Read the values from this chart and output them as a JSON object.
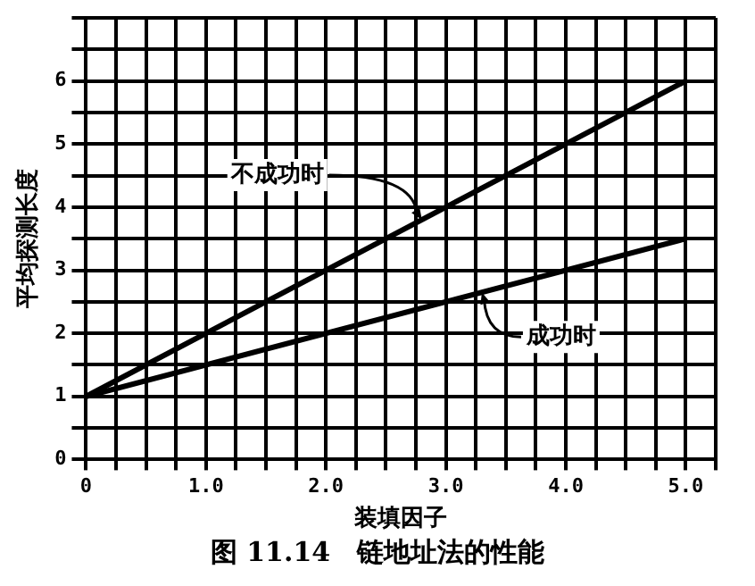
{
  "chart_data": {
    "type": "line",
    "xlabel": "装填因子",
    "ylabel": "平均探测长度",
    "x": [
      0,
      5
    ],
    "series": [
      {
        "color": "#000000",
        "values": [
          1,
          6
        ]
      },
      {
        "color": "#000000",
        "values": [
          1,
          3.5
        ]
      }
    ],
    "xlim": [
      0,
      5.25
    ],
    "ylim": [
      0,
      7
    ],
    "xticks": [
      0,
      {
        "value": 0.25,
        "label": null
      },
      {
        "value": 0.5,
        "label": null
      },
      {
        "value": 0.75,
        "label": null
      },
      {
        "value": 1,
        "label": "1.0"
      },
      {
        "value": 1.25,
        "label": null
      },
      {
        "value": 1.5,
        "label": null
      },
      {
        "value": 1.75,
        "label": null
      },
      {
        "value": 2,
        "label": "2.0"
      },
      {
        "value": 2.25,
        "label": null
      },
      {
        "value": 2.5,
        "label": null
      },
      {
        "value": 2.75,
        "label": null
      },
      {
        "value": 3,
        "label": "3.0"
      },
      {
        "value": 3.25,
        "label": null
      },
      {
        "value": 3.5,
        "label": null
      },
      {
        "value": 3.75,
        "label": null
      },
      {
        "value": 4,
        "label": "4.0"
      },
      {
        "value": 4.25,
        "label": null
      },
      {
        "value": 4.5,
        "label": null
      },
      {
        "value": 4.75,
        "label": null
      },
      {
        "value": 5,
        "label": "5.0"
      },
      {
        "value": 5.25,
        "label": null
      }
    ],
    "yticks": [
      0,
      {
        "value": 0.5,
        "label": null
      },
      1,
      {
        "value": 1.5,
        "label": null
      },
      2,
      {
        "value": 2.5,
        "label": null
      },
      3,
      {
        "value": 3.5,
        "label": null
      },
      4,
      {
        "value": 4.5,
        "label": null
      },
      5,
      {
        "value": 5.5,
        "label": null
      },
      6,
      {
        "value": 6.5,
        "label": null
      },
      {
        "value": 7,
        "label": null
      }
    ],
    "grid": true,
    "marker": "none",
    "line_style": "solid",
    "legend": false,
    "annotations": [
      {
        "text": "不成功时",
        "x": 2.8,
        "y": 3.8
      },
      {
        "text": "成功时",
        "x": 3.3,
        "y": 2.65
      },
      "图 11.14　链地址法的性能"
    ]
  }
}
